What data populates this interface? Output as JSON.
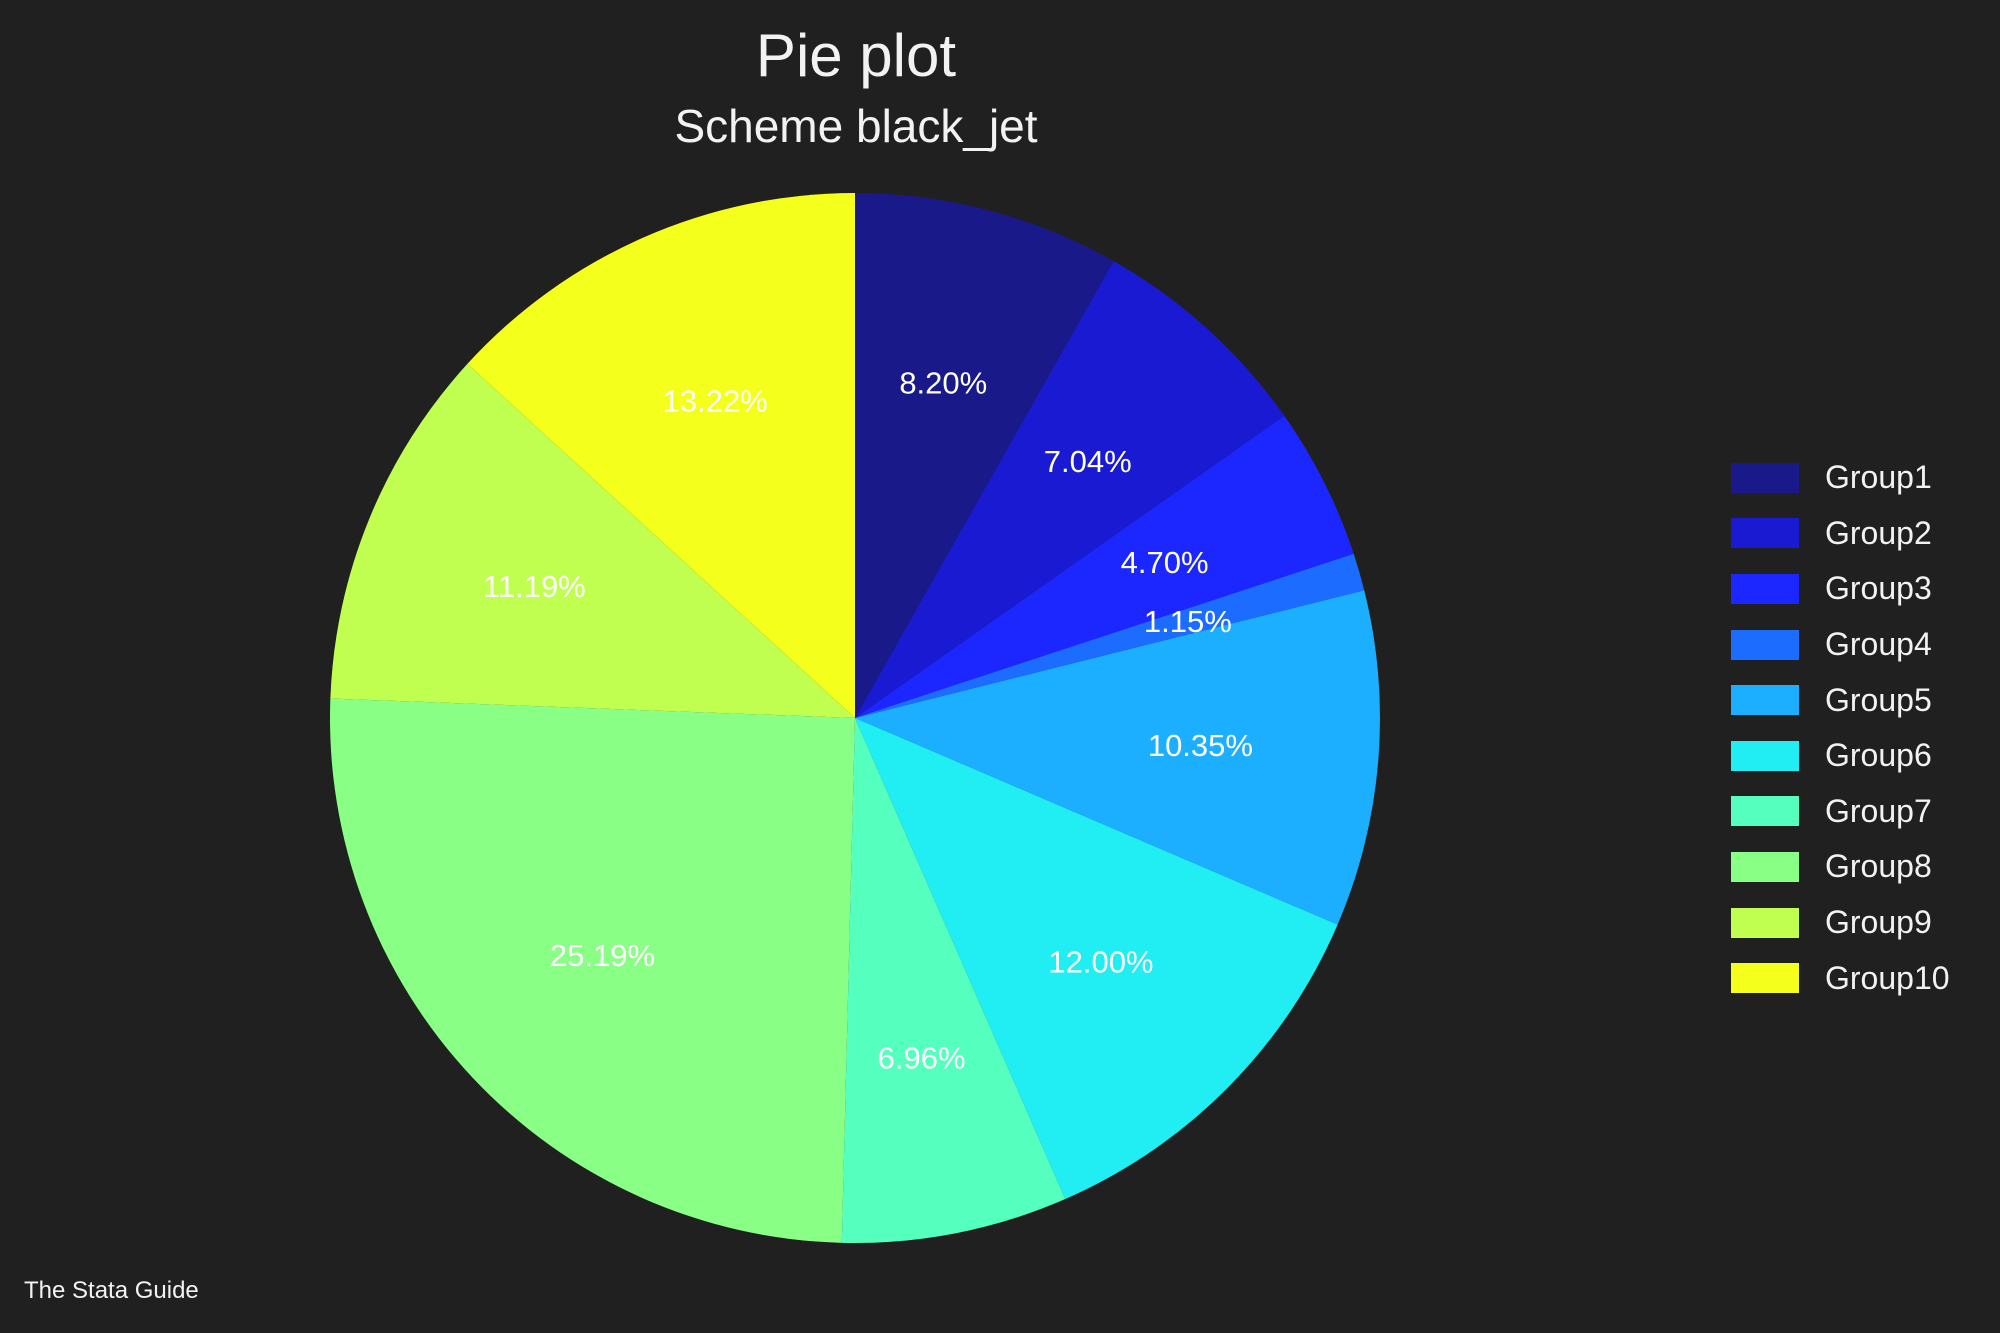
{
  "chart_data": {
    "type": "pie",
    "title": "Pie plot",
    "subtitle": "Scheme black_jet",
    "note": "The Stata Guide",
    "legend_position": "right",
    "start_angle": "12 o'clock",
    "direction": "clockwise",
    "background_color": "#202020",
    "slices": [
      {
        "label": "Group1",
        "value": 8.2,
        "text": "8.20%",
        "color": "#19198a"
      },
      {
        "label": "Group2",
        "value": 7.04,
        "text": "7.04%",
        "color": "#1a1ad2"
      },
      {
        "label": "Group3",
        "value": 4.7,
        "text": "4.70%",
        "color": "#1c27ff"
      },
      {
        "label": "Group4",
        "value": 1.15,
        "text": "1.15%",
        "color": "#1c6cff"
      },
      {
        "label": "Group5",
        "value": 10.35,
        "text": "10.35%",
        "color": "#1caeff"
      },
      {
        "label": "Group6",
        "value": 12.0,
        "text": "12.00%",
        "color": "#20eef2"
      },
      {
        "label": "Group7",
        "value": 6.96,
        "text": "6.96%",
        "color": "#55ffbe"
      },
      {
        "label": "Group8",
        "value": 25.19,
        "text": "25.19%",
        "color": "#8aff86"
      },
      {
        "label": "Group9",
        "value": 11.19,
        "text": "11.19%",
        "color": "#c0ff50"
      },
      {
        "label": "Group10",
        "value": 13.22,
        "text": "13.22%",
        "color": "#f4ff1c"
      }
    ]
  }
}
